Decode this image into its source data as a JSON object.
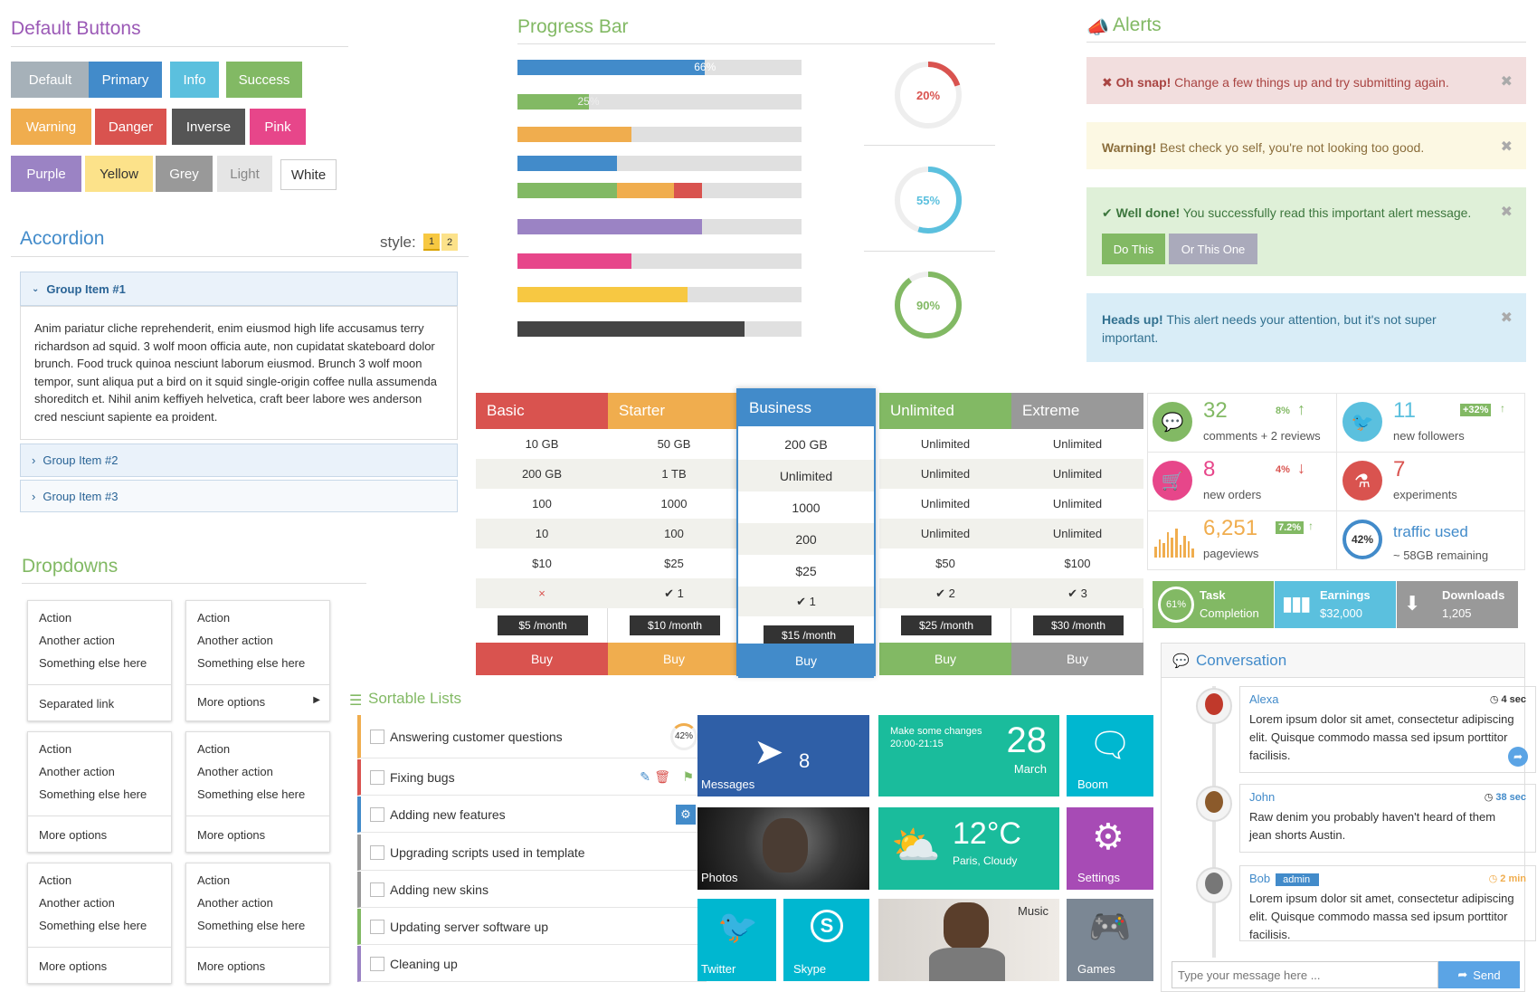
{
  "buttons": {
    "title": "Default Buttons",
    "items": [
      {
        "label": "Default",
        "color": "#a6b1b9"
      },
      {
        "label": "Primary",
        "color": "#428bca"
      },
      {
        "label": "Info",
        "color": "#5bc0de"
      },
      {
        "label": "Success",
        "color": "#82b964"
      },
      {
        "label": "Warning",
        "color": "#f0ad4e"
      },
      {
        "label": "Danger",
        "color": "#d9534f"
      },
      {
        "label": "Inverse",
        "color": "#555555"
      },
      {
        "label": "Pink",
        "color": "#e7468a"
      },
      {
        "label": "Purple",
        "color": "#9b83c4"
      },
      {
        "label": "Yellow",
        "color": "#fce28a"
      },
      {
        "label": "Grey",
        "color": "#999999"
      },
      {
        "label": "Light",
        "color": "#e5e5e5"
      },
      {
        "label": "White",
        "color": "#ffffff"
      }
    ]
  },
  "accordion": {
    "title": "Accordion",
    "style_label": "style:",
    "style_options": [
      "1",
      "2"
    ],
    "groups": [
      {
        "label": "Group Item #1",
        "expanded": true
      },
      {
        "label": "Group Item #2",
        "expanded": false
      },
      {
        "label": "Group Item #3",
        "expanded": false
      }
    ],
    "body": "Anim pariatur cliche reprehenderit, enim eiusmod high life accusamus terry richardson ad squid. 3 wolf moon officia aute, non cupidatat skateboard dolor brunch. Food truck quinoa nesciunt laborum eiusmod. Brunch 3 wolf moon tempor, sunt aliqua put a bird on it squid single-origin coffee nulla assumenda shoreditch et. Nihil anim keffiyeh helvetica, craft beer labore wes anderson cred nesciunt sapiente ea proident."
  },
  "dropdowns": {
    "title": "Dropdowns",
    "menus": [
      {
        "items": [
          "Action",
          "Another action",
          "Something else here"
        ],
        "last": "Separated link"
      },
      {
        "items": [
          "Action",
          "Another action",
          "Something else here"
        ],
        "last": "More options",
        "submenu": true
      },
      {
        "items": [
          "Action",
          "Another action",
          "Something else here"
        ],
        "last": "More options"
      },
      {
        "items": [
          "Action",
          "Another action",
          "Something else here"
        ],
        "last": "More options"
      },
      {
        "items": [
          "Action",
          "Another action",
          "Something else here"
        ],
        "last": "More options"
      },
      {
        "items": [
          "Action",
          "Another action",
          "Something else here"
        ],
        "last": "More options"
      }
    ]
  },
  "progress": {
    "title": "Progress Bar",
    "bars": [
      {
        "label": "66%",
        "value": 66,
        "color": "#428bca"
      },
      {
        "label": "25%",
        "value": 25,
        "color": "#82b964",
        "striped": true
      },
      {
        "label": "",
        "value": 40,
        "color": "#f0ad4e",
        "striped": true
      },
      {
        "label": "",
        "value": 35,
        "color": "#428bca"
      },
      {
        "label": "",
        "value": 65,
        "color": "#82b964",
        "stack": [
          35,
          20,
          10
        ]
      },
      {
        "label": "",
        "value": 65,
        "color": "#9b83c4",
        "striped": true
      },
      {
        "label": "",
        "value": 40,
        "color": "#e7468a",
        "striped": true
      },
      {
        "label": "",
        "value": 60,
        "color": "#f7c842",
        "striped": true
      },
      {
        "label": "",
        "value": 80,
        "color": "#444444",
        "striped": true
      }
    ],
    "circles": [
      {
        "label": "20%",
        "value": 20,
        "color": "#d9534f"
      },
      {
        "label": "55%",
        "value": 55,
        "color": "#5bc0de"
      },
      {
        "label": "90%",
        "value": 90,
        "color": "#82b964"
      }
    ]
  },
  "alerts": {
    "title": "Alerts",
    "items": [
      {
        "strong": "Oh snap!",
        "text": " Change a few things up and try submitting again.",
        "bg": "#f2dede",
        "color": "#a94442"
      },
      {
        "strong": "Warning!",
        "text": " Best check yo self, you're not looking too good.",
        "bg": "#fcf8e3",
        "color": "#8a6d3b"
      },
      {
        "strong": "Well done!",
        "text": " You successfully read this important alert message.",
        "bg": "#dff0d8",
        "color": "#3c763d",
        "buttons": [
          "Do This",
          "Or This One"
        ]
      },
      {
        "strong": "Heads up!",
        "text": " This alert needs your attention, but it's not super important.",
        "bg": "#d9edf7",
        "color": "#31708f"
      }
    ]
  },
  "pricing": {
    "plans": [
      {
        "name": "Basic",
        "color": "#d9534f",
        "rows": [
          "10 GB",
          "200 GB",
          "100",
          "10",
          "$10"
        ],
        "check": "×",
        "price": "$5 /month",
        "buy": "Buy"
      },
      {
        "name": "Starter",
        "color": "#f0ad4e",
        "rows": [
          "50 GB",
          "1 TB",
          "1000",
          "100",
          "$25"
        ],
        "check": "✔ 1",
        "price": "$10 /month",
        "buy": "Buy"
      },
      {
        "name": "Business",
        "color": "#428bca",
        "rows": [
          "200 GB",
          "Unlimited",
          "1000",
          "200",
          "$25"
        ],
        "check": "✔ 1",
        "price": "$15 /month",
        "buy": "Buy"
      },
      {
        "name": "Unlimited",
        "color": "#82b964",
        "rows": [
          "Unlimited",
          "Unlimited",
          "Unlimited",
          "Unlimited",
          "$50"
        ],
        "check": "✔ 2",
        "price": "$25 /month",
        "buy": "Buy"
      },
      {
        "name": "Extreme",
        "color": "#999999",
        "rows": [
          "Unlimited",
          "Unlimited",
          "Unlimited",
          "Unlimited",
          "$100"
        ],
        "check": "✔ 3",
        "price": "$30 /month",
        "buy": "Buy"
      }
    ]
  },
  "stats": [
    {
      "num": "32",
      "label": "comments + 2 reviews",
      "badge": "8%",
      "color": "#82b964"
    },
    {
      "num": "11",
      "label": "new followers",
      "badge": "+32%",
      "color": "#5bc0de"
    },
    {
      "num": "8",
      "label": "new orders",
      "badge": "4%",
      "color": "#e7468a"
    },
    {
      "num": "7",
      "label": "experiments",
      "badge": "",
      "color": "#d9534f"
    },
    {
      "num": "6,251",
      "label": "pageviews",
      "badge": "7.2%",
      "color": "#f0ad4e"
    },
    {
      "num": "traffic used",
      "label": "~ 58GB remaining",
      "badge": "42%",
      "color": "#428bca"
    }
  ],
  "infoboxes": [
    {
      "title": "Task",
      "sub": "Completion",
      "value": "61%",
      "color": "#82b964"
    },
    {
      "title": "Earnings",
      "sub": "$32,000",
      "color": "#5bc0de"
    },
    {
      "title": "Downloads",
      "sub": "1,205",
      "color": "#999999"
    }
  ],
  "sortable": {
    "title": "Sortable Lists",
    "items": [
      {
        "label": "Answering customer questions",
        "color": "#f0ad4e",
        "badge": "42%"
      },
      {
        "label": "Fixing bugs",
        "color": "#d9534f"
      },
      {
        "label": "Adding new features",
        "color": "#428bca"
      },
      {
        "label": "Upgrading scripts used in template",
        "color": "#999999"
      },
      {
        "label": "Adding new skins",
        "color": "#999999"
      },
      {
        "label": "Updating server software up",
        "color": "#82b964"
      },
      {
        "label": "Cleaning up",
        "color": "#9b83c4"
      }
    ]
  },
  "tiles": {
    "messages": {
      "label": "Messages",
      "count": "8"
    },
    "calendar": {
      "line1": "Make some changes",
      "line2": "20:00-21:15",
      "day": "28",
      "month": "March"
    },
    "boom": {
      "label": "Boom"
    },
    "photos": {
      "label": "Photos"
    },
    "weather": {
      "temp": "12°C",
      "place": "Paris, Cloudy"
    },
    "settings": {
      "label": "Settings"
    },
    "twitter": {
      "label": "Twitter"
    },
    "skype": {
      "label": "Skype"
    },
    "music": {
      "label": "Music"
    },
    "games": {
      "label": "Games"
    }
  },
  "conversation": {
    "title": "Conversation",
    "messages": [
      {
        "name": "Alexa",
        "time": "4 sec",
        "text": "Lorem ipsum dolor sit amet, consectetur adipiscing elit. Quisque commodo massa sed ipsum porttitor facilisis."
      },
      {
        "name": "John",
        "time": "38 sec",
        "text": "Raw denim you probably haven't heard of them jean shorts Austin."
      },
      {
        "name": "Bob",
        "tag": "admin",
        "time": "2 min",
        "text": "Lorem ipsum dolor sit amet, consectetur adipiscing elit. Quisque commodo massa sed ipsum porttitor facilisis."
      }
    ],
    "placeholder": "Type your message here ...",
    "send": "Send"
  }
}
